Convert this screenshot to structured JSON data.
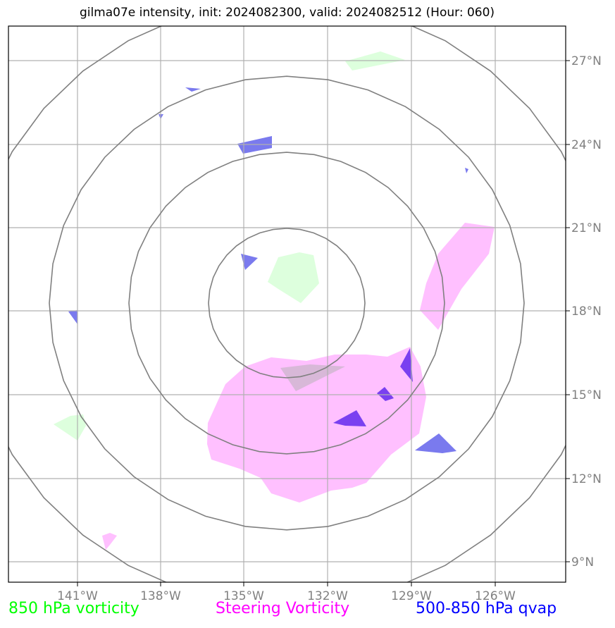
{
  "title": "gilma07e intensity, init: 2024082300, valid: 2024082512 (Hour: 060)",
  "map": {
    "lon_ticks": [
      "141°W",
      "138°W",
      "135°W",
      "132°W",
      "129°W",
      "126°W"
    ],
    "lat_ticks": [
      "27°N",
      "24°N",
      "21°N",
      "18°N",
      "15°N",
      "12°N",
      "9°N"
    ]
  },
  "legend": [
    {
      "label": "850 hPa vorticity",
      "color": "#00ff00"
    },
    {
      "label": "Steering Vorticity",
      "color": "#ff00ff"
    },
    {
      "label": "500-850 hPa qvap",
      "color": "#0000ff"
    }
  ],
  "colors": {
    "vorticity_850": "#ddffdd",
    "steering_vorticity": "#ffc0ff",
    "qvap": "#7a7aee",
    "qvap_overlap": "#7a40f0",
    "grid": "#b0b0b0",
    "range_rings": "#808080"
  }
}
